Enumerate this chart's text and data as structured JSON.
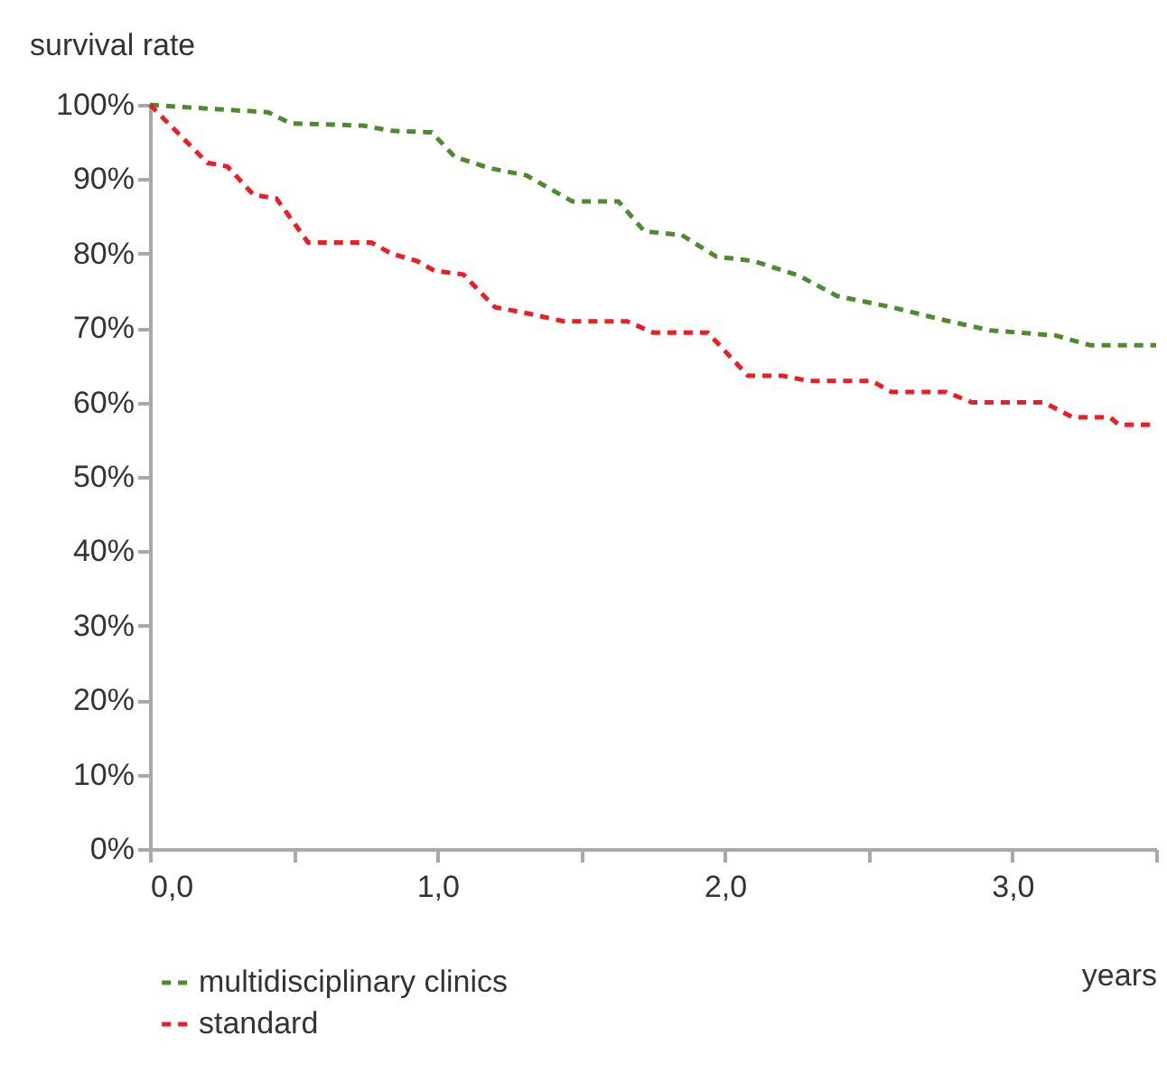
{
  "chart_data": {
    "type": "line",
    "ylabel": "survival rate",
    "xlabel": "years",
    "xlim": [
      0,
      3.5
    ],
    "xticks": [
      {
        "value": 0,
        "label": "0,0"
      },
      {
        "value": 0.5,
        "label": null
      },
      {
        "value": 1,
        "label": "1,0"
      },
      {
        "value": 1.5,
        "label": null
      },
      {
        "value": 2,
        "label": "2,0"
      },
      {
        "value": 2.5,
        "label": null
      },
      {
        "value": 3,
        "label": "3,0"
      },
      {
        "value": 3.5,
        "label": null
      }
    ],
    "ylim": [
      0,
      100
    ],
    "yticks": [
      {
        "value": 0,
        "label": "0%"
      },
      {
        "value": 10,
        "label": "10%"
      },
      {
        "value": 20,
        "label": "20%"
      },
      {
        "value": 30,
        "label": "30%"
      },
      {
        "value": 40,
        "label": "40%"
      },
      {
        "value": 50,
        "label": "50%"
      },
      {
        "value": 60,
        "label": "60%"
      },
      {
        "value": 70,
        "label": "70%"
      },
      {
        "value": 80,
        "label": "80%"
      },
      {
        "value": 90,
        "label": "90%"
      },
      {
        "value": 100,
        "label": "100%"
      }
    ],
    "grid": false,
    "legend": "bottom",
    "line_style": "dashed",
    "marker": "none",
    "series": [
      {
        "name": "multidisciplinary clinics",
        "color": "#4f8a2f",
        "x": [
          0,
          0.11,
          0.41,
          0.49,
          0.74,
          0.84,
          0.98,
          1.06,
          1.18,
          1.31,
          1.47,
          1.63,
          1.72,
          1.85,
          1.97,
          2.1,
          2.26,
          2.39,
          2.58,
          2.77,
          2.92,
          3.15,
          3.27,
          3.5
        ],
        "values": [
          100,
          99.7,
          99,
          97.5,
          97.2,
          96.5,
          96.3,
          93,
          91.5,
          90.5,
          87,
          87,
          83,
          82.5,
          79.6,
          79,
          77,
          74.3,
          72.8,
          71,
          69.7,
          69,
          67.7,
          67.7
        ]
      },
      {
        "name": "standard",
        "color": "#ee1c25",
        "x": [
          0,
          0.2,
          0.27,
          0.36,
          0.44,
          0.55,
          0.77,
          0.84,
          0.93,
          0.99,
          1.09,
          1.2,
          1.31,
          1.44,
          1.66,
          1.75,
          1.94,
          2.08,
          2.2,
          2.29,
          2.51,
          2.58,
          2.77,
          2.86,
          3.11,
          3.21,
          3.34,
          3.37,
          3.5
        ],
        "values": [
          100,
          92.2,
          91.7,
          87.9,
          87.4,
          81.5,
          81.5,
          80,
          79,
          77.7,
          77.2,
          72.8,
          72,
          70.9,
          70.9,
          69.4,
          69.4,
          63.6,
          63.6,
          62.9,
          62.9,
          61.4,
          61.4,
          60,
          60,
          58,
          58,
          57,
          57
        ]
      }
    ]
  }
}
